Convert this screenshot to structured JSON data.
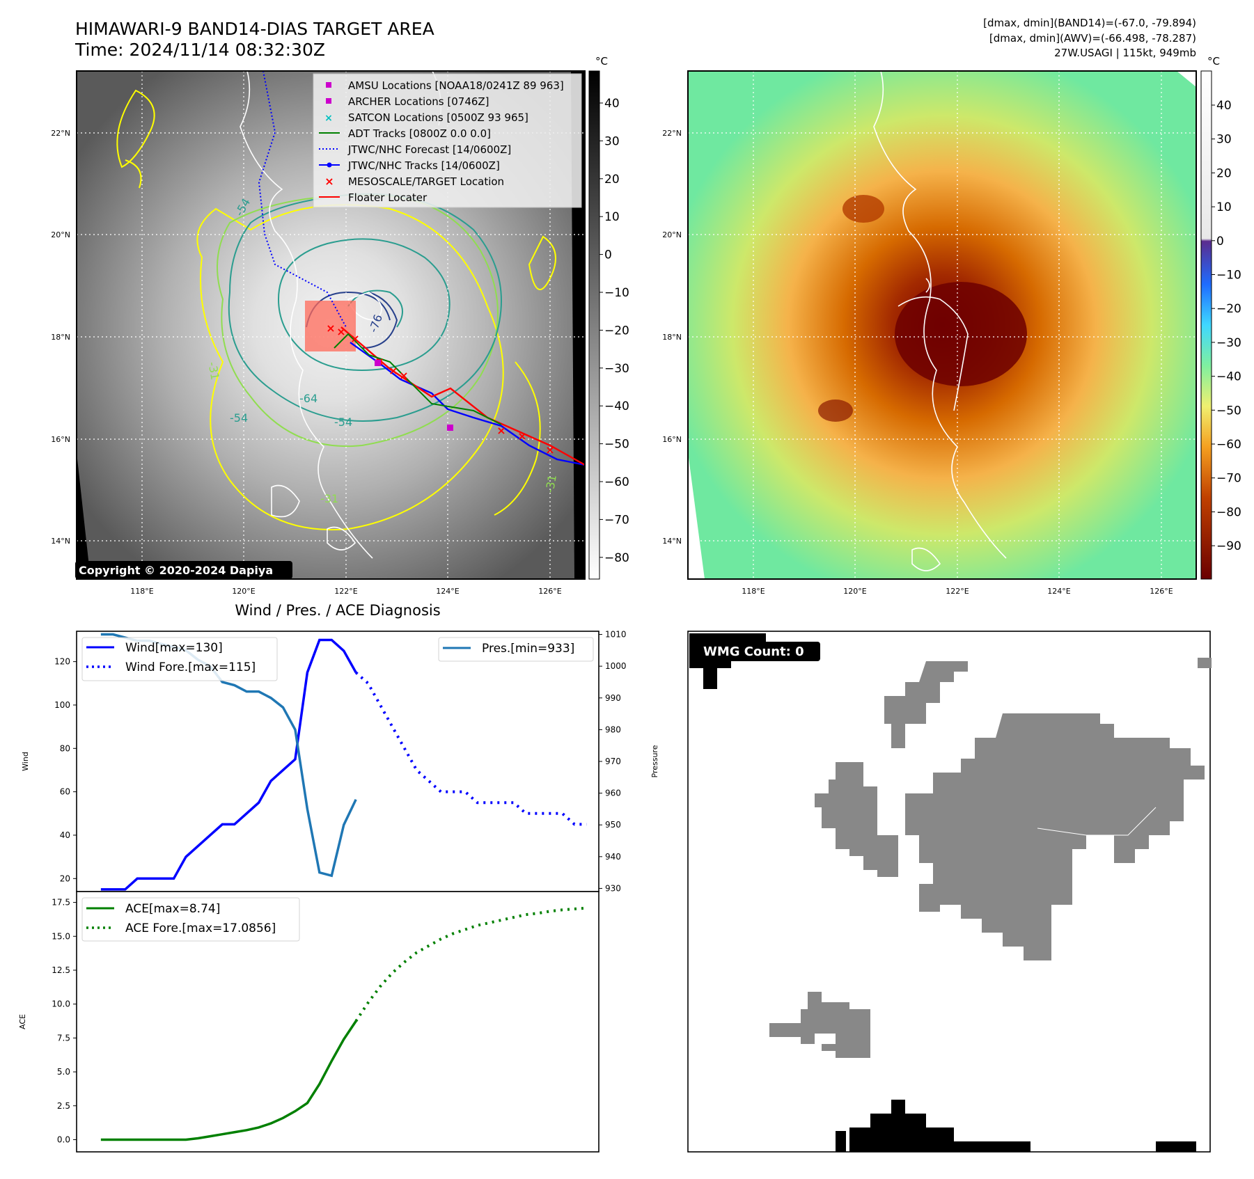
{
  "header": {
    "title": "HIMAWARI-9 BAND14-DIAS TARGET AREA",
    "time": "Time: 2024/11/14 08:32:30Z",
    "dmax_band14": "[dmax, dmin](BAND14)=(-67.0, -79.894)",
    "dmax_awv": "[dmax, dmin](AWV)=(-66.498, -78.287)",
    "storm": "27W.USAGI | 115kt, 949mb"
  },
  "map_axes": {
    "lat_labels": [
      "22°N",
      "20°N",
      "18°N",
      "16°N",
      "14°N"
    ],
    "lon_labels": [
      "118°E",
      "120°E",
      "122°E",
      "124°E",
      "126°E"
    ]
  },
  "ir_colorbar": {
    "unit": "°C",
    "ticks": [
      "40",
      "30",
      "20",
      "10",
      "0",
      "−10",
      "−20",
      "−30",
      "−40",
      "−50",
      "−60",
      "−70",
      "−80"
    ]
  },
  "awv_colorbar": {
    "unit": "°C",
    "ticks": [
      "40",
      "30",
      "20",
      "10",
      "0",
      "−10",
      "−20",
      "−30",
      "−40",
      "−50",
      "−60",
      "−70",
      "−80",
      "−90"
    ]
  },
  "legend": {
    "items": [
      {
        "label": "AMSU Locations [NOAA18/0241Z 89 963]",
        "color": "#cc00cc",
        "symbol": "square"
      },
      {
        "label": "ARCHER Locations [0746Z]",
        "color": "#cc00cc",
        "symbol": "square"
      },
      {
        "label": "SATCON Locations [0500Z 93 965]",
        "color": "#00bfbf",
        "symbol": "x"
      },
      {
        "label": "ADT Tracks [0800Z 0.0 0.0]",
        "color": "#008000",
        "symbol": "line"
      },
      {
        "label": "JTWC/NHC Forecast [14/0600Z]",
        "color": "#0000ff",
        "symbol": "dotted"
      },
      {
        "label": "JTWC/NHC Tracks [14/0600Z]",
        "color": "#0000ff",
        "symbol": "line-dot"
      },
      {
        "label": "MESOSCALE/TARGET Location",
        "color": "#ff0000",
        "symbol": "x"
      },
      {
        "label": "Floater Locater",
        "color": "#ff0000",
        "symbol": "line"
      }
    ]
  },
  "contour_labels": [
    "-76",
    "-64",
    "-54",
    "-54",
    "-31",
    "-31",
    "-31",
    "-54"
  ],
  "copyright": "Copyright © 2020-2024 Dapiya",
  "wmg_count": "WMG Count: 0",
  "chart_data": [
    {
      "type": "line",
      "title": "Wind / Pres. / ACE Diagnosis",
      "ylabel": "Wind",
      "y2label": "Pressure",
      "ylim": [
        14,
        134
      ],
      "y2lim": [
        929,
        1011
      ],
      "xlim": [
        -2,
        41
      ],
      "yticks": [
        20,
        40,
        60,
        80,
        100,
        120
      ],
      "y2ticks": [
        930,
        940,
        950,
        960,
        970,
        980,
        990,
        1000,
        1010
      ],
      "series": [
        {
          "name": "Wind[max=130]",
          "color": "#0000ff",
          "style": "solid",
          "x": [
            0,
            1,
            2,
            3,
            4,
            5,
            6,
            7,
            8,
            9,
            10,
            11,
            12,
            13,
            14,
            15,
            16,
            17,
            18,
            19,
            20,
            21
          ],
          "values": [
            15,
            15,
            15,
            20,
            20,
            20,
            20,
            30,
            35,
            40,
            45,
            45,
            50,
            55,
            65,
            70,
            75,
            115,
            130,
            130,
            125,
            115
          ]
        },
        {
          "name": "Wind Fore.[max=115]",
          "color": "#0000ff",
          "style": "dotted",
          "x": [
            21,
            22,
            23,
            24,
            25,
            26,
            27,
            28,
            29,
            30,
            31,
            32,
            33,
            34,
            35,
            36,
            37,
            38,
            39,
            40
          ],
          "values": [
            115,
            110,
            100,
            90,
            80,
            70,
            65,
            60,
            60,
            60,
            55,
            55,
            55,
            55,
            50,
            50,
            50,
            50,
            45,
            45
          ]
        },
        {
          "name": "Pres.[min=933]",
          "color": "#1f77b4",
          "style": "solid",
          "axis": "right",
          "x": [
            0,
            1,
            2,
            3,
            4,
            5,
            6,
            7,
            8,
            9,
            10,
            11,
            12,
            13,
            14,
            15,
            16,
            17,
            18,
            19,
            20,
            21
          ],
          "values": [
            1010,
            1010,
            1009,
            1008,
            1008,
            1007,
            1006,
            1005,
            1002,
            1000,
            995,
            994,
            992,
            992,
            990,
            987,
            980,
            955,
            935,
            934,
            950,
            958
          ]
        }
      ]
    },
    {
      "type": "line",
      "ylabel": "ACE",
      "ylim": [
        -0.9,
        18.3
      ],
      "xlim": [
        -2,
        41
      ],
      "yticks": [
        "0.0",
        "2.5",
        "5.0",
        "7.5",
        "10.0",
        "12.5",
        "15.0",
        "17.5"
      ],
      "series": [
        {
          "name": "ACE[max=8.74]",
          "color": "#008000",
          "style": "solid",
          "x": [
            0,
            1,
            2,
            3,
            4,
            5,
            6,
            7,
            8,
            9,
            10,
            11,
            12,
            13,
            14,
            15,
            16,
            17,
            18,
            19,
            20,
            21
          ],
          "values": [
            0,
            0,
            0,
            0,
            0,
            0,
            0,
            0,
            0.1,
            0.25,
            0.4,
            0.55,
            0.7,
            0.9,
            1.2,
            1.6,
            2.1,
            2.7,
            4.1,
            5.8,
            7.4,
            8.74
          ]
        },
        {
          "name": "ACE Fore.[max=17.0856]",
          "color": "#008000",
          "style": "dotted",
          "x": [
            21,
            22,
            23,
            24,
            25,
            26,
            27,
            28,
            29,
            30,
            31,
            32,
            33,
            34,
            35,
            36,
            37,
            38,
            39,
            40
          ],
          "values": [
            8.74,
            10.1,
            11.3,
            12.3,
            13.1,
            13.8,
            14.3,
            14.8,
            15.2,
            15.5,
            15.8,
            16.0,
            16.2,
            16.4,
            16.6,
            16.7,
            16.85,
            16.95,
            17.02,
            17.0856
          ]
        }
      ]
    }
  ]
}
